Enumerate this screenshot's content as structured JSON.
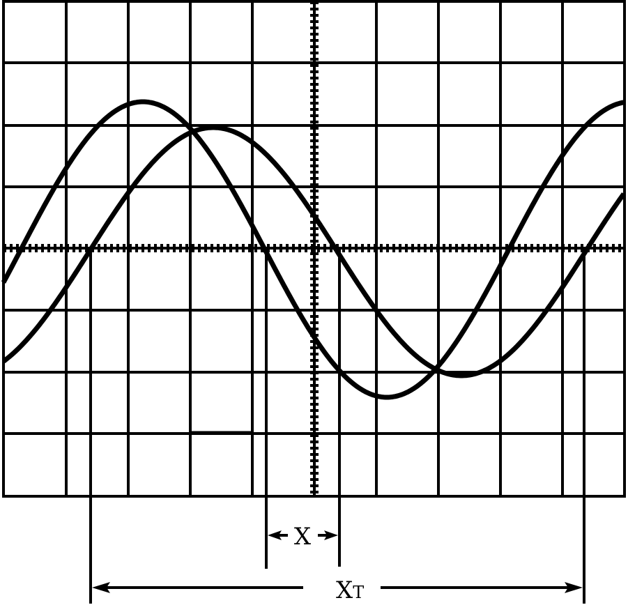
{
  "labels": {
    "phase_shift": "X",
    "period_main": "X",
    "period_sub": "T"
  },
  "colors": {
    "ink": "#000000",
    "background": "#ffffff"
  }
}
